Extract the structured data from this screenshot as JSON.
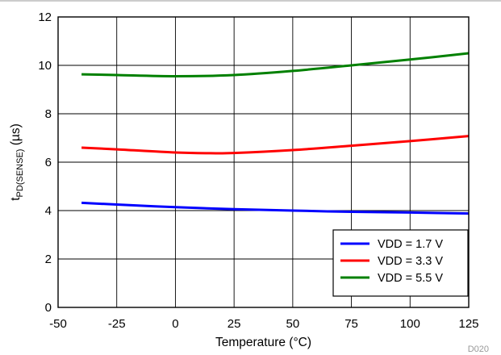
{
  "chart_data": {
    "type": "line",
    "xlabel": "Temperature (°C)",
    "ylabel_main": "t",
    "ylabel_sub": "PD(SENSE)",
    "ylabel_unit": " (µs)",
    "xlim": [
      -50,
      125
    ],
    "ylim": [
      0,
      12
    ],
    "x_ticks": [
      "-50",
      "-25",
      "0",
      "25",
      "50",
      "75",
      "100",
      "125"
    ],
    "y_ticks": [
      "0",
      "2",
      "4",
      "6",
      "8",
      "10",
      "12"
    ],
    "grid": true,
    "legend_position": "bottom-right",
    "figure_tag": "D020",
    "series": [
      {
        "name": "VDD = 1.7 V",
        "color": "#0000ff",
        "x": [
          -40,
          -25,
          0,
          25,
          50,
          75,
          100,
          125
        ],
        "y": [
          4.32,
          4.25,
          4.14,
          4.06,
          4.0,
          3.95,
          3.92,
          3.88
        ]
      },
      {
        "name": "VDD = 3.3 V",
        "color": "#ff0000",
        "x": [
          -40,
          -25,
          0,
          15,
          25,
          50,
          75,
          100,
          125
        ],
        "y": [
          6.6,
          6.53,
          6.4,
          6.37,
          6.38,
          6.5,
          6.68,
          6.87,
          7.08
        ]
      },
      {
        "name": "VDD = 5.5 V",
        "color": "#008000",
        "x": [
          -40,
          -25,
          0,
          25,
          50,
          75,
          100,
          125
        ],
        "y": [
          9.63,
          9.6,
          9.55,
          9.6,
          9.77,
          10.0,
          10.24,
          10.5
        ]
      }
    ]
  }
}
